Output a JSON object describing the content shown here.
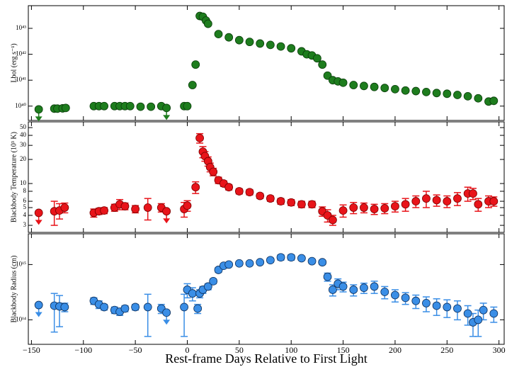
{
  "chart_data": [
    {
      "type": "scatter",
      "y_label": "Lbol (erg s⁻¹)",
      "log_scale": true,
      "color": "#1e7d1e",
      "edge_color": "#0a3d0a",
      "xlim": [
        -153,
        305
      ],
      "xticks": [
        -150,
        -100,
        -50,
        0,
        50,
        100,
        150,
        200,
        250,
        300
      ],
      "x_tick_labels": false,
      "ylim": [
        2.8e+39,
        7.5e+43
      ],
      "yticks": [
        {
          "value": 1e+40,
          "label": "10⁴⁰"
        },
        {
          "value": 1e+41,
          "label": "10⁴¹"
        },
        {
          "value": 1e+42,
          "label": "10⁴²"
        },
        {
          "value": 1e+43,
          "label": "10⁴³"
        }
      ],
      "x": [
        -128,
        -125,
        -120,
        -117,
        -90,
        -85,
        -80,
        -70,
        -65,
        -60,
        -55,
        -45,
        -35,
        -25,
        -3,
        0,
        5,
        8,
        12,
        15,
        18,
        20,
        30,
        40,
        50,
        60,
        70,
        80,
        90,
        100,
        110,
        115,
        120,
        125,
        130,
        135,
        140,
        145,
        150,
        160,
        170,
        180,
        190,
        200,
        210,
        220,
        230,
        240,
        250,
        260,
        270,
        280,
        290,
        295
      ],
      "values": [
        8e+39,
        8e+39,
        8.2e+39,
        8.5e+39,
        1e+40,
        1e+40,
        1e+40,
        1e+40,
        1e+40,
        1e+40,
        1e+40,
        9.5e+39,
        9.5e+39,
        1e+40,
        1e+40,
        1e+40,
        6.5e+40,
        4e+41,
        3e+43,
        2.8e+43,
        2e+43,
        1.5e+43,
        6e+42,
        4.5e+42,
        3.5e+42,
        3e+42,
        2.6e+42,
        2.3e+42,
        2e+42,
        1.7e+42,
        1.3e+42,
        1e+42,
        9e+41,
        7e+41,
        4e+41,
        1.5e+41,
        1e+41,
        9e+40,
        8e+40,
        6.5e+40,
        6e+40,
        5.5e+40,
        5e+40,
        4.5e+40,
        4e+40,
        3.8e+40,
        3.5e+40,
        3.2e+40,
        3e+40,
        2.7e+40,
        2.4e+40,
        2e+40,
        1.5e+40,
        1.6e+40
      ],
      "upper_limits": {
        "x": [
          -143,
          -20
        ],
        "values": [
          7.5e+39,
          8.5e+39
        ]
      }
    },
    {
      "type": "scatter",
      "y_label": "Blackbody Temperature (10³ K)",
      "log_scale": true,
      "color": "#e8141a",
      "edge_color": "#7a0000",
      "xlim": [
        -153,
        305
      ],
      "xticks": [
        -150,
        -100,
        -50,
        0,
        50,
        100,
        150,
        200,
        250,
        300
      ],
      "x_tick_labels": false,
      "ylim": [
        2.45,
        59
      ],
      "yticks": [
        3,
        4,
        5,
        6,
        8,
        10,
        20,
        30,
        40,
        50
      ],
      "x": [
        -128,
        -123,
        -118,
        -90,
        -85,
        -80,
        -70,
        -65,
        -60,
        -50,
        -38,
        -25,
        -3,
        0,
        8,
        12,
        15,
        17,
        20,
        22,
        25,
        30,
        35,
        40,
        50,
        60,
        70,
        80,
        90,
        100,
        110,
        120,
        130,
        135,
        140,
        150,
        160,
        170,
        180,
        190,
        200,
        210,
        220,
        230,
        240,
        250,
        260,
        270,
        275,
        280,
        290,
        295
      ],
      "values": [
        4.5,
        4.6,
        5,
        4.3,
        4.5,
        4.6,
        5,
        5.5,
        5.2,
        4.8,
        5,
        5,
        4.8,
        5.3,
        9,
        37,
        25,
        22,
        19,
        16,
        14,
        11,
        10,
        9,
        8,
        7.8,
        7,
        6.5,
        6,
        5.8,
        5.5,
        5.5,
        4.5,
        4,
        3.5,
        4.6,
        5,
        5,
        4.8,
        4.9,
        5.2,
        5.5,
        6,
        6.5,
        6.2,
        6,
        6.5,
        7.5,
        7.5,
        5.5,
        6,
        6
      ],
      "errors": [
        1.5,
        1,
        0.7,
        0.5,
        0.4,
        0.4,
        0.5,
        0.8,
        0.5,
        0.5,
        1.5,
        0.6,
        1,
        0.8,
        1.5,
        5,
        4,
        3,
        2.5,
        2,
        1.5,
        1,
        0.8,
        0.7,
        0.6,
        0.6,
        0.5,
        0.5,
        0.5,
        0.5,
        0.5,
        0.5,
        0.6,
        0.7,
        0.5,
        0.8,
        0.8,
        0.7,
        0.7,
        0.7,
        0.8,
        1,
        1,
        1.5,
        1,
        1,
        1.2,
        1.5,
        1.2,
        1,
        1,
        0.8
      ],
      "upper_limits": {
        "x": [
          -143,
          -20
        ],
        "values": [
          4.3,
          4.5
        ]
      }
    },
    {
      "type": "scatter",
      "y_label": "Blackbody Radius (cm)",
      "log_scale": true,
      "color": "#3a8ee6",
      "edge_color": "#0c2f5c",
      "xlim": [
        -153,
        305
      ],
      "xticks": [
        {
          "value": -150,
          "label": "−150"
        },
        {
          "value": -100,
          "label": "−100"
        },
        {
          "value": -50,
          "label": "−50"
        },
        0,
        50,
        100,
        150,
        200,
        250,
        300
      ],
      "x_tick_labels": true,
      "x_label": "Rest-frame Days Relative to First Light",
      "ylim": [
        36000000000000.0,
        3600000000000000.0
      ],
      "yticks": [
        {
          "value": 100000000000000.0,
          "label": "10¹⁴"
        },
        {
          "value": 1000000000000000.0,
          "label": "10¹⁵"
        }
      ],
      "x": [
        -128,
        -123,
        -118,
        -90,
        -85,
        -80,
        -70,
        -65,
        -60,
        -50,
        -38,
        -25,
        -3,
        0,
        5,
        10,
        12,
        15,
        20,
        25,
        30,
        35,
        40,
        50,
        60,
        70,
        80,
        90,
        100,
        110,
        120,
        130,
        135,
        140,
        145,
        150,
        160,
        170,
        180,
        190,
        200,
        210,
        220,
        230,
        240,
        250,
        260,
        270,
        275,
        280,
        285,
        295
      ],
      "values": [
        180000000000000.0,
        175000000000000.0,
        170000000000000.0,
        220000000000000.0,
        190000000000000.0,
        170000000000000.0,
        150000000000000.0,
        140000000000000.0,
        160000000000000.0,
        170000000000000.0,
        170000000000000.0,
        160000000000000.0,
        170000000000000.0,
        350000000000000.0,
        300000000000000.0,
        160000000000000.0,
        300000000000000.0,
        350000000000000.0,
        400000000000000.0,
        500000000000000.0,
        800000000000000.0,
        950000000000000.0,
        1000000000000000.0,
        1050000000000000.0,
        1050000000000000.0,
        1100000000000000.0,
        1200000000000000.0,
        1350000000000000.0,
        1350000000000000.0,
        1300000000000000.0,
        1150000000000000.0,
        1100000000000000.0,
        600000000000000.0,
        350000000000000.0,
        450000000000000.0,
        400000000000000.0,
        350000000000000.0,
        380000000000000.0,
        400000000000000.0,
        320000000000000.0,
        280000000000000.0,
        250000000000000.0,
        220000000000000.0,
        200000000000000.0,
        180000000000000.0,
        170000000000000.0,
        160000000000000.0,
        130000000000000.0,
        90000000000000.0,
        100000000000000.0,
        150000000000000.0,
        130000000000000.0
      ],
      "errors": [
        120000000000000.0,
        100000000000000.0,
        30000000000000.0,
        30000000000000.0,
        30000000000000.0,
        20000000000000.0,
        20000000000000.0,
        20000000000000.0,
        20000000000000.0,
        20000000000000.0,
        120000000000000.0,
        30000000000000.0,
        120000000000000.0,
        100000000000000.0,
        80000000000000.0,
        30000000000000.0,
        50000000000000.0,
        50000000000000.0,
        50000000000000.0,
        50000000000000.0,
        80000000000000.0,
        80000000000000.0,
        80000000000000.0,
        80000000000000.0,
        80000000000000.0,
        80000000000000.0,
        100000000000000.0,
        150000000000000.0,
        150000000000000.0,
        100000000000000.0,
        100000000000000.0,
        100000000000000.0,
        100000000000000.0,
        80000000000000.0,
        100000000000000.0,
        80000000000000.0,
        80000000000000.0,
        80000000000000.0,
        100000000000000.0,
        80000000000000.0,
        70000000000000.0,
        60000000000000.0,
        60000000000000.0,
        60000000000000.0,
        60000000000000.0,
        60000000000000.0,
        60000000000000.0,
        50000000000000.0,
        40000000000000.0,
        50000000000000.0,
        50000000000000.0,
        40000000000000.0
      ],
      "upper_limits": {
        "x": [
          -143,
          -20
        ],
        "values": [
          185000000000000.0,
          135000000000000.0
        ]
      }
    }
  ]
}
